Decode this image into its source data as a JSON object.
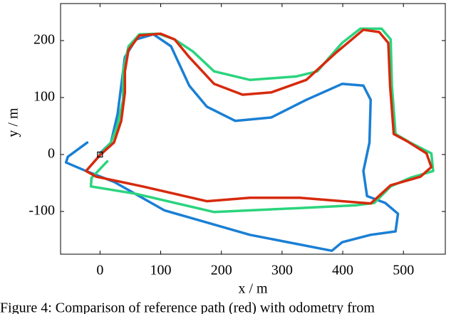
{
  "chart_data": {
    "type": "line",
    "xlabel": "x / m",
    "ylabel": "y / m",
    "caption": "Figure 4: Comparison of reference path (red) with odometry from",
    "xlim": [
      -65,
      569
    ],
    "ylim": [
      -175,
      265
    ],
    "xticks": [
      0,
      100,
      200,
      300,
      400,
      500
    ],
    "yticks": [
      -100,
      0,
      100,
      200
    ],
    "series": [
      {
        "color": "#1a7fd4",
        "x": [
          -21,
          -53,
          -56,
          -23,
          23,
          106,
          247,
          382,
          399,
          446,
          487,
          491,
          470,
          440,
          434,
          444,
          446,
          434,
          399,
          340,
          282,
          223,
          176,
          147,
          117,
          88,
          59,
          41,
          35,
          29,
          18,
          0
        ],
        "values": [
          21,
          -4,
          -14,
          -29,
          -48,
          -98,
          -141,
          -169,
          -154,
          -141,
          -135,
          -104,
          -85,
          -73,
          -29,
          21,
          96,
          121,
          124,
          96,
          65,
          59,
          84,
          121,
          190,
          211,
          202,
          171,
          121,
          71,
          21,
          2
        ]
      },
      {
        "color": "#2bd47d",
        "x": [
          12,
          -14,
          -15,
          59,
          188,
          329,
          423,
          452,
          479,
          511,
          549,
          546,
          511,
          487,
          481,
          479,
          464,
          429,
          399,
          358,
          323,
          247,
          188,
          153,
          123,
          96,
          65,
          47,
          38,
          38,
          29,
          18,
          0
        ],
        "values": [
          -12,
          -41,
          -56,
          -69,
          -101,
          -94,
          -89,
          -85,
          -56,
          -41,
          -29,
          2,
          21,
          36,
          121,
          202,
          221,
          221,
          196,
          146,
          137,
          131,
          146,
          181,
          202,
          212,
          211,
          190,
          146,
          96,
          52,
          21,
          0
        ]
      },
      {
        "color": "#d62a0d",
        "x": [
          0,
          -23,
          -6,
          70,
          176,
          247,
          329,
          446,
          479,
          528,
          546,
          538,
          505,
          484,
          478,
          475,
          460,
          434,
          387,
          340,
          282,
          235,
          188,
          147,
          123,
          100,
          65,
          47,
          41,
          41,
          35,
          23,
          0
        ],
        "values": [
          -1,
          -29,
          -39,
          -56,
          -82,
          -76,
          -76,
          -86,
          -54,
          -39,
          -22,
          2,
          24,
          36,
          121,
          196,
          215,
          219,
          177,
          131,
          109,
          105,
          124,
          171,
          202,
          212,
          209,
          184,
          146,
          109,
          59,
          21,
          -1
        ]
      }
    ],
    "markers": [
      {
        "x": 0,
        "y": 0
      }
    ]
  }
}
